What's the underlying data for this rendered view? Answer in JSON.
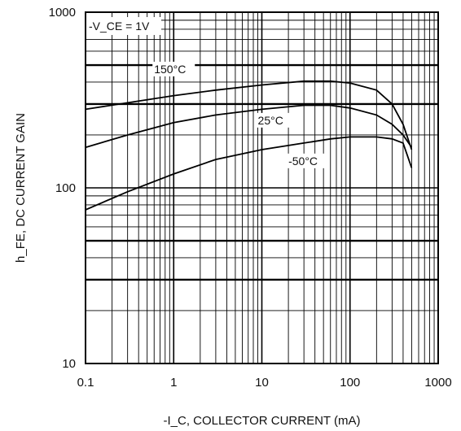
{
  "chart_data": {
    "type": "line",
    "x_scale": "log",
    "y_scale": "log",
    "xlim": [
      0.1,
      1000
    ],
    "ylim": [
      10,
      1000
    ],
    "grid": true,
    "xlabel": "-I_C, COLLECTOR CURRENT (mA)",
    "ylabel": "h_FE, DC CURRENT GAIN",
    "condition": "-V_CE = 1V",
    "x_ticks": [
      {
        "value": 0.1,
        "label": "0.1"
      },
      {
        "value": 1,
        "label": "1"
      },
      {
        "value": 10,
        "label": "10"
      },
      {
        "value": 100,
        "label": "100"
      },
      {
        "value": 1000,
        "label": "1000"
      }
    ],
    "y_ticks": [
      {
        "value": 10,
        "label": "10"
      },
      {
        "value": 100,
        "label": "100"
      },
      {
        "value": 1000,
        "label": "1000"
      }
    ],
    "series": [
      {
        "name": "150°C",
        "x": [
          0.1,
          0.3,
          1,
          3,
          10,
          30,
          60,
          100,
          200,
          300,
          400,
          500
        ],
        "y": [
          280,
          305,
          335,
          360,
          385,
          405,
          405,
          395,
          360,
          300,
          230,
          165
        ]
      },
      {
        "name": "25°C",
        "x": [
          0.1,
          0.3,
          1,
          3,
          10,
          30,
          60,
          100,
          200,
          300,
          400,
          500
        ],
        "y": [
          170,
          200,
          235,
          260,
          280,
          295,
          295,
          285,
          260,
          230,
          200,
          170
        ]
      },
      {
        "name": "-50°C",
        "x": [
          0.1,
          0.3,
          1,
          3,
          10,
          30,
          60,
          100,
          200,
          300,
          400,
          500
        ],
        "y": [
          75,
          95,
          120,
          145,
          165,
          180,
          190,
          195,
          195,
          190,
          180,
          130
        ]
      }
    ]
  }
}
